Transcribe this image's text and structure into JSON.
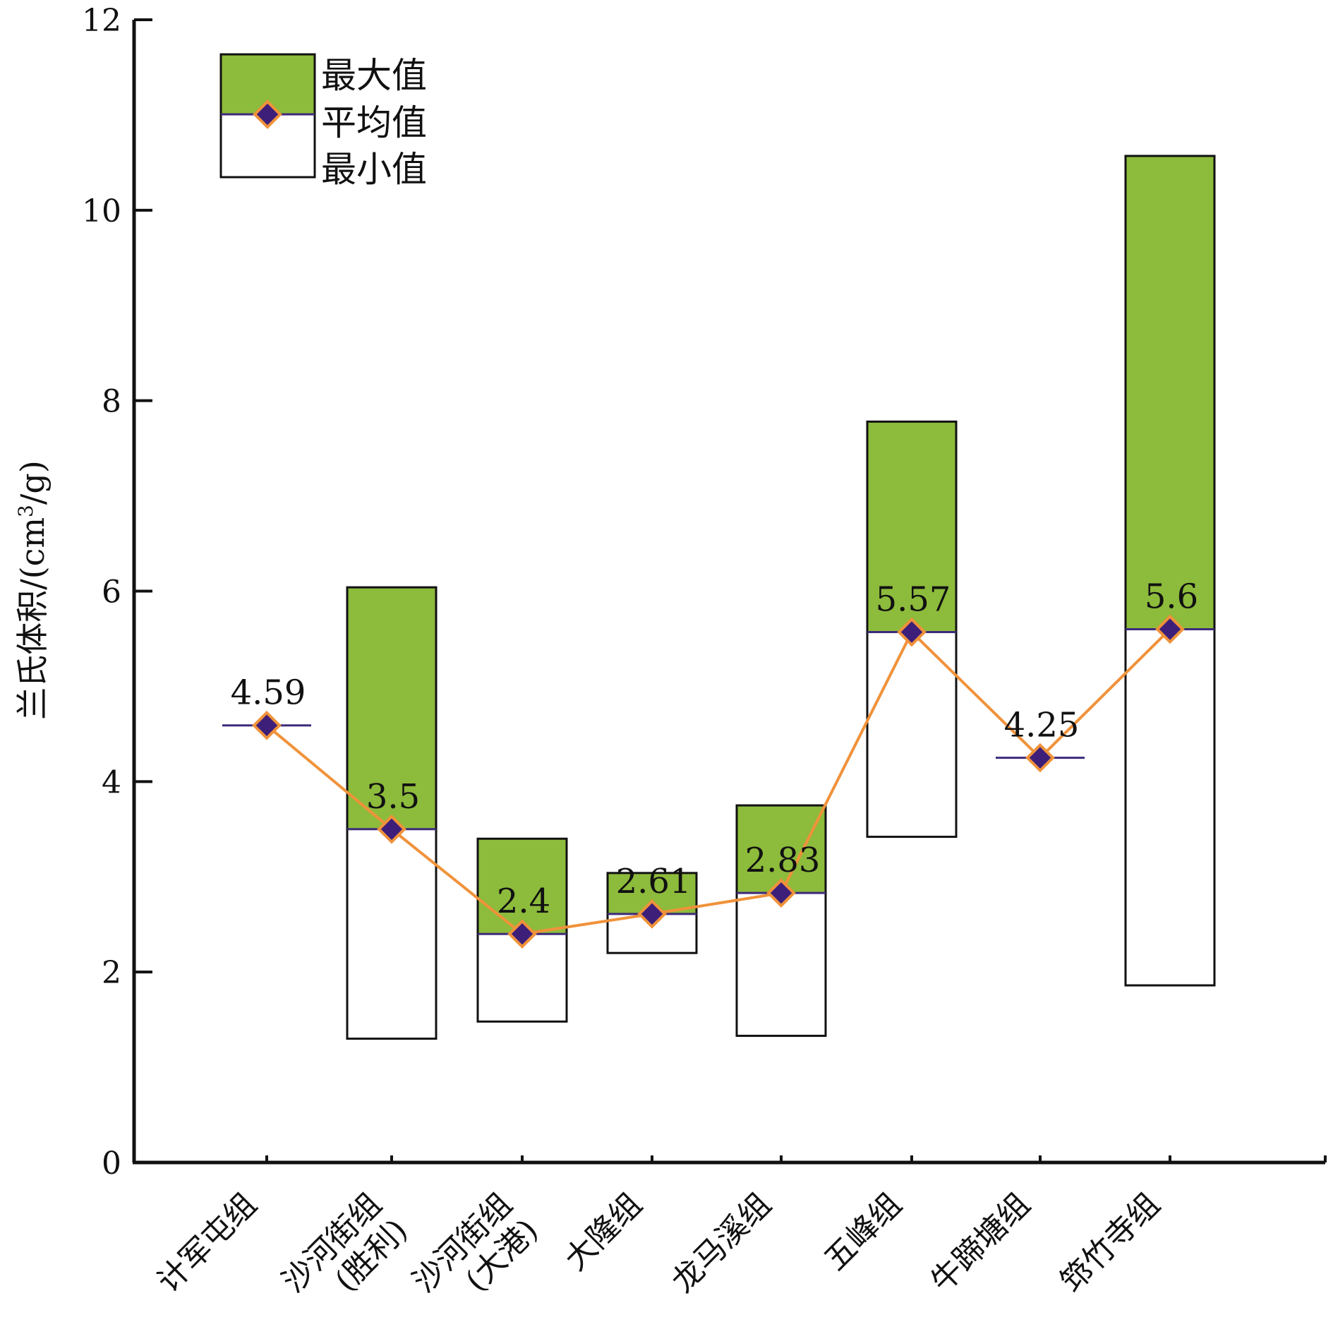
{
  "chart_data": {
    "type": "bar",
    "subtype": "floating-range-with-mean",
    "title": "",
    "ylabel": "兰氏体积/(cm³/g)",
    "ylabel_parts": {
      "main": "兰氏体积/(cm",
      "superscript": "3",
      "tail": "/g)"
    },
    "xlabel": "",
    "ylim": [
      0,
      12
    ],
    "yticks": [
      "0",
      "2",
      "4",
      "6",
      "8",
      "10",
      "12"
    ],
    "grid": false,
    "legend_position": "top-left",
    "legend": {
      "max_label": "最大值",
      "mean_label": "平均值",
      "min_label": "最小值"
    },
    "categories": [
      {
        "lines": [
          "计军屯组"
        ]
      },
      {
        "lines": [
          "沙河街组",
          "(胜利)"
        ]
      },
      {
        "lines": [
          "沙河街组",
          "(大港)"
        ]
      },
      {
        "lines": [
          "大隆组"
        ]
      },
      {
        "lines": [
          "龙马溪组"
        ]
      },
      {
        "lines": [
          "五峰组"
        ]
      },
      {
        "lines": [
          "牛蹄塘组"
        ]
      },
      {
        "lines": [
          "筇竹寺组"
        ]
      }
    ],
    "series": [
      {
        "name": "最小值",
        "values": [
          null,
          1.3,
          1.48,
          2.2,
          1.33,
          3.42,
          null,
          1.86
        ]
      },
      {
        "name": "平均值",
        "values": [
          4.59,
          3.5,
          2.4,
          2.61,
          2.83,
          5.57,
          4.25,
          5.6
        ]
      },
      {
        "name": "最大值",
        "values": [
          null,
          6.04,
          3.4,
          3.04,
          3.75,
          7.78,
          null,
          10.57
        ]
      }
    ],
    "data_labels": [
      "4.59",
      "3.5",
      "2.4",
      "2.61",
      "2.83",
      "5.57",
      "4.25",
      "5.6"
    ],
    "colors": {
      "upper_fill": "#8dbb3c",
      "lower_fill": "#ffffff",
      "bar_stroke": "#111111",
      "mean_line": "#3d2a7a",
      "marker_fill": "#3d1f7a",
      "marker_stroke": "#f0923a",
      "connector": "#f0923a",
      "axis": "#111111"
    }
  }
}
